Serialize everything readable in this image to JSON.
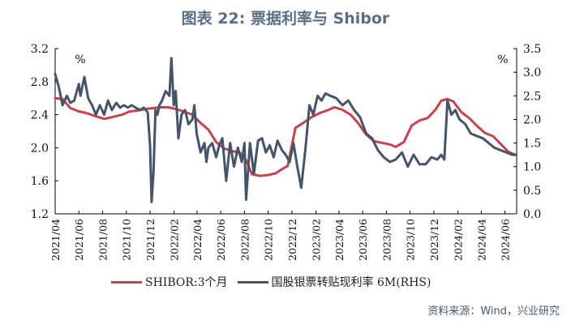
{
  "title": "图表 22: 票据利率与 Shibor",
  "source": "资料来源：Wind，兴业研究",
  "colors": {
    "shibor": "#c8414b",
    "bill": "#44546a",
    "axis": "#000000",
    "grid": "#d9d9d9"
  },
  "chart_data": {
    "type": "line",
    "left_axis": {
      "unit_label": "%",
      "ylim": [
        1.2,
        3.2
      ],
      "ticks": [
        "3.2",
        "2.8",
        "2.4",
        "2.0",
        "1.6",
        "1.2"
      ]
    },
    "right_axis": {
      "unit_label": "%",
      "ylim": [
        0.0,
        3.5
      ],
      "ticks": [
        "3.5",
        "3.0",
        "2.5",
        "2.0",
        "1.5",
        "1.0",
        "0.5",
        "0.0"
      ]
    },
    "x_ticks": [
      "2021/04",
      "2021/06",
      "2021/08",
      "2021/10",
      "2021/12",
      "2022/02",
      "2022/04",
      "2022/06",
      "2022/08",
      "2022/10",
      "2022/12",
      "2023/02",
      "2023/04",
      "2023/06",
      "2023/08",
      "2023/10",
      "2023/12",
      "2024/02",
      "2024/04",
      "2024/06"
    ],
    "x_range": [
      "2021-04-01",
      "2024-07-01"
    ],
    "series": [
      {
        "name": "SHIBOR:3个月",
        "axis": "left",
        "x": [
          "2021-04-01",
          "2021-04-20",
          "2021-05-10",
          "2021-06-01",
          "2021-06-20",
          "2021-07-15",
          "2021-08-05",
          "2021-08-25",
          "2021-09-20",
          "2021-10-10",
          "2021-10-30",
          "2021-11-20",
          "2021-12-10",
          "2021-12-30",
          "2022-01-15",
          "2022-02-05",
          "2022-02-25",
          "2022-03-20",
          "2022-04-10",
          "2022-04-30",
          "2022-05-20",
          "2022-06-10",
          "2022-06-30",
          "2022-07-20",
          "2022-08-05",
          "2022-08-20",
          "2022-09-10",
          "2022-09-30",
          "2022-10-20",
          "2022-11-05",
          "2022-11-20",
          "2022-12-10",
          "2022-12-30",
          "2023-01-20",
          "2023-02-10",
          "2023-03-01",
          "2023-03-20",
          "2023-04-10",
          "2023-05-01",
          "2023-05-20",
          "2023-06-10",
          "2023-06-30",
          "2023-07-20",
          "2023-08-10",
          "2023-08-25",
          "2023-09-15",
          "2023-10-05",
          "2023-10-25",
          "2023-11-15",
          "2023-12-05",
          "2023-12-20",
          "2024-01-05",
          "2024-01-20",
          "2024-02-10",
          "2024-03-01",
          "2024-03-20",
          "2024-04-10",
          "2024-05-01",
          "2024-05-20",
          "2024-06-10",
          "2024-06-30"
        ],
        "values": [
          2.6,
          2.59,
          2.48,
          2.44,
          2.42,
          2.38,
          2.35,
          2.37,
          2.4,
          2.44,
          2.45,
          2.47,
          2.48,
          2.49,
          2.49,
          2.47,
          2.44,
          2.4,
          2.3,
          2.22,
          2.07,
          1.99,
          1.96,
          1.94,
          1.85,
          1.68,
          1.66,
          1.67,
          1.69,
          1.74,
          1.78,
          2.24,
          2.3,
          2.37,
          2.42,
          2.45,
          2.49,
          2.46,
          2.4,
          2.3,
          2.16,
          2.08,
          2.06,
          2.04,
          2.01,
          2.07,
          2.27,
          2.33,
          2.36,
          2.46,
          2.57,
          2.59,
          2.56,
          2.43,
          2.36,
          2.27,
          2.18,
          2.14,
          2.05,
          1.95,
          1.91
        ]
      },
      {
        "name": "国股银票转贴现利率 6M(RHS)",
        "axis": "right",
        "x": [
          "2021-04-01",
          "2021-04-10",
          "2021-04-20",
          "2021-05-01",
          "2021-05-10",
          "2021-05-20",
          "2021-06-01",
          "2021-06-05",
          "2021-06-15",
          "2021-06-25",
          "2021-07-05",
          "2021-07-15",
          "2021-07-25",
          "2021-08-05",
          "2021-08-15",
          "2021-08-25",
          "2021-09-05",
          "2021-09-15",
          "2021-09-25",
          "2021-10-05",
          "2021-10-15",
          "2021-10-25",
          "2021-11-05",
          "2021-11-15",
          "2021-11-25",
          "2021-12-01",
          "2021-12-05",
          "2021-12-10",
          "2021-12-15",
          "2021-12-20",
          "2021-12-25",
          "2022-01-01",
          "2022-01-10",
          "2022-01-20",
          "2022-01-25",
          "2022-01-31",
          "2022-02-05",
          "2022-02-12",
          "2022-02-20",
          "2022-03-01",
          "2022-03-10",
          "2022-03-20",
          "2022-03-25",
          "2022-03-31",
          "2022-04-10",
          "2022-04-20",
          "2022-04-25",
          "2022-04-30",
          "2022-05-10",
          "2022-05-20",
          "2022-05-28",
          "2022-06-05",
          "2022-06-15",
          "2022-06-25",
          "2022-07-05",
          "2022-07-15",
          "2022-07-25",
          "2022-08-01",
          "2022-08-05",
          "2022-08-15",
          "2022-08-25",
          "2022-09-05",
          "2022-09-15",
          "2022-09-25",
          "2022-10-05",
          "2022-10-15",
          "2022-10-25",
          "2022-11-05",
          "2022-11-15",
          "2022-11-25",
          "2022-12-05",
          "2022-12-15",
          "2022-12-25",
          "2023-01-05",
          "2023-01-15",
          "2023-01-25",
          "2023-02-05",
          "2023-02-15",
          "2023-02-25",
          "2023-03-10",
          "2023-03-25",
          "2023-04-10",
          "2023-04-25",
          "2023-05-10",
          "2023-05-25",
          "2023-06-10",
          "2023-06-25",
          "2023-07-10",
          "2023-07-25",
          "2023-08-10",
          "2023-08-25",
          "2023-09-10",
          "2023-09-25",
          "2023-10-10",
          "2023-10-25",
          "2023-11-10",
          "2023-11-25",
          "2023-12-10",
          "2023-12-20",
          "2023-12-28",
          "2024-01-05",
          "2024-01-15",
          "2024-01-25",
          "2024-02-05",
          "2024-02-20",
          "2024-03-05",
          "2024-03-20",
          "2024-04-05",
          "2024-04-20",
          "2024-05-05",
          "2024-05-20",
          "2024-06-05",
          "2024-06-20",
          "2024-06-30"
        ],
        "values": [
          2.96,
          2.7,
          2.3,
          2.5,
          2.35,
          2.4,
          2.75,
          2.5,
          2.9,
          2.45,
          2.3,
          2.1,
          2.3,
          2.1,
          2.4,
          2.2,
          2.35,
          2.25,
          2.3,
          2.25,
          2.3,
          2.25,
          2.2,
          2.25,
          2.15,
          1.45,
          0.25,
          0.9,
          2.2,
          2.1,
          2.3,
          2.4,
          2.6,
          2.5,
          3.3,
          2.3,
          2.6,
          1.6,
          2.1,
          2.2,
          1.9,
          2.0,
          2.3,
          1.7,
          1.3,
          1.5,
          1.1,
          1.4,
          1.5,
          1.2,
          1.45,
          1.6,
          0.7,
          1.5,
          1.0,
          1.4,
          1.1,
          1.5,
          0.3,
          1.5,
          0.85,
          1.55,
          1.6,
          1.3,
          1.45,
          1.2,
          1.55,
          1.35,
          1.25,
          1.1,
          1.5,
          1.0,
          0.55,
          1.4,
          2.3,
          2.1,
          2.5,
          2.4,
          2.55,
          2.5,
          2.45,
          2.3,
          2.4,
          2.2,
          2.05,
          1.7,
          1.6,
          1.35,
          1.2,
          1.1,
          1.15,
          1.3,
          1.0,
          1.25,
          1.05,
          1.05,
          1.2,
          1.15,
          1.25,
          1.15,
          2.4,
          2.1,
          2.2,
          2.0,
          1.9,
          1.7,
          1.65,
          1.6,
          1.5,
          1.4,
          1.35,
          1.3,
          1.25,
          1.25
        ]
      }
    ],
    "grid": false,
    "legend_position": "bottom"
  }
}
